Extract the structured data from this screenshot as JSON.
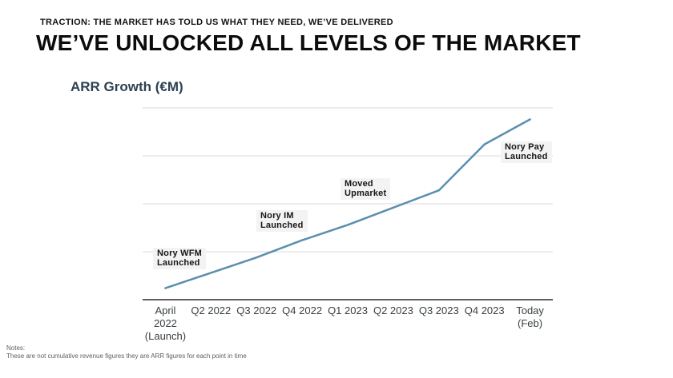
{
  "slide": {
    "eyebrow": "TRACTION: THE MARKET HAS TOLD US WHAT THEY NEED, WE’VE DELIVERED",
    "title": "WE’VE UNLOCKED ALL LEVELS OF THE MARKET"
  },
  "chart": {
    "title": "ARR Growth (€M)"
  },
  "chart_data": {
    "type": "line",
    "title": "ARR Growth (€M)",
    "categories": [
      "April\n2022\n(Launch)",
      "Q2 2022",
      "Q3 2022",
      "Q4 2022",
      "Q1 2023",
      "Q2 2023",
      "Q3 2023",
      "Q4 2023",
      "Today\n(Feb)"
    ],
    "series": [
      {
        "name": "ARR Growth",
        "values": [
          6,
          14,
          22,
          31,
          39,
          48,
          57,
          81,
          94
        ]
      }
    ],
    "ylim": [
      0,
      100
    ],
    "gridline_values": [
      25,
      50,
      75,
      100
    ],
    "y_axis_labels_visible": false,
    "values_note": "y-axis has no numeric labels in the image; values are relative estimates read from the unlabeled gridlines",
    "grid": "horizontal-only",
    "legend": "none",
    "annotations": [
      {
        "label": "Nory WFM\nLaunched",
        "at": "April 2022 (Launch)"
      },
      {
        "label": "Nory IM\nLaunched",
        "at": "Q3 2022"
      },
      {
        "label": "Moved\nUpmarket",
        "at": "Q1 2023"
      },
      {
        "label": "Nory Pay\nLaunched",
        "at": "Q4 2023"
      }
    ],
    "colors": {
      "line": "#5a8fae",
      "gridline": "#dadada",
      "axis": "#5f5f5f",
      "tick_label": "#3a3f42"
    }
  },
  "notes": {
    "label": "Notes:",
    "text": "These are not cumulative revenue figures they are ARR figures for each point in time"
  }
}
